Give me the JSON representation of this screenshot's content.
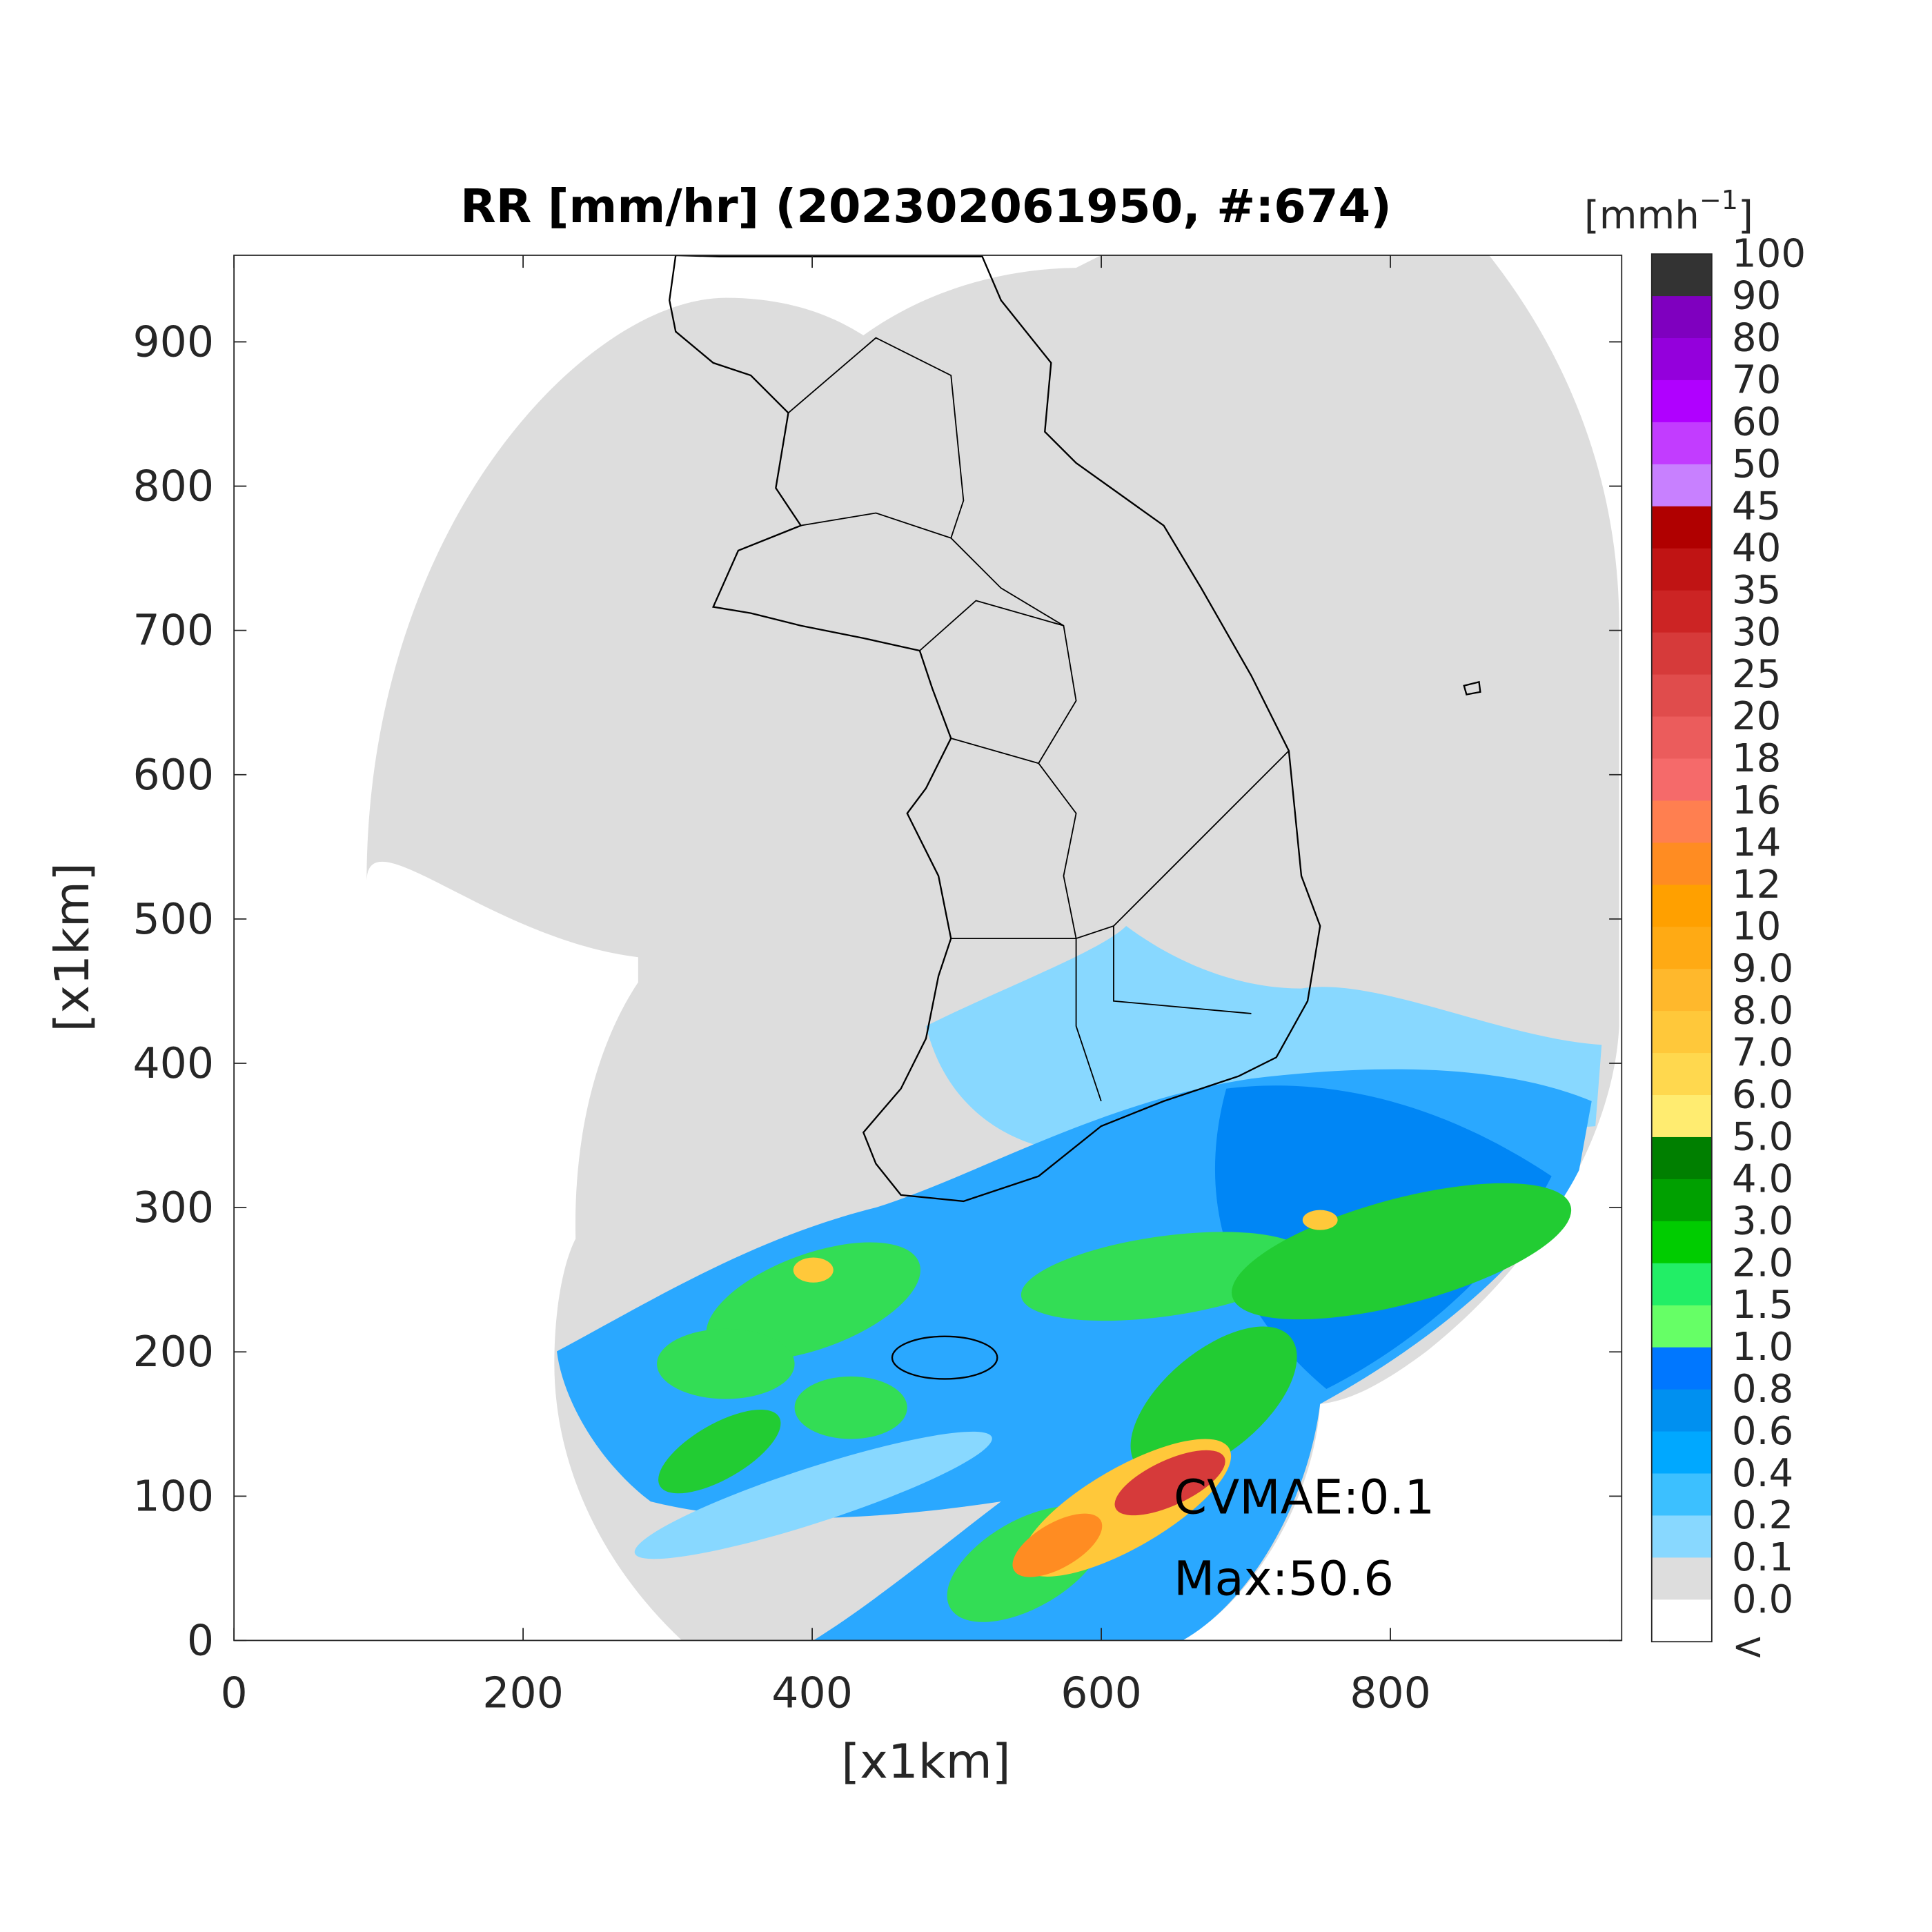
{
  "chart_data": {
    "type": "map",
    "title": "RR [mm/hr] (202302061950, #:674)",
    "xlabel": "[x1km]",
    "ylabel": "[x1km]",
    "xlim": [
      0,
      960
    ],
    "ylim": [
      0,
      960
    ],
    "xticks": [
      0,
      200,
      400,
      600,
      800
    ],
    "yticks": [
      0,
      100,
      200,
      300,
      400,
      500,
      600,
      700,
      800,
      900
    ],
    "annotations": [
      "CVMAE:0.1",
      "Max:50.6"
    ],
    "colorbar": {
      "unit": "[mmh",
      "unit_exponent": "−1",
      "unit_close": "]",
      "ticks": [
        100,
        90,
        80,
        70,
        60,
        50,
        45,
        40,
        35,
        30,
        25,
        20,
        18,
        16,
        14,
        12,
        10,
        {
          "value": 9,
          "label": "9.0"
        },
        {
          "value": 8,
          "label": "8.0"
        },
        {
          "value": 7,
          "label": "7.0"
        },
        {
          "value": 6,
          "label": "6.0"
        },
        {
          "value": 5,
          "label": "5.0"
        },
        {
          "value": 4,
          "label": "4.0"
        },
        {
          "value": 3,
          "label": "3.0"
        },
        {
          "value": 2,
          "label": "2.0"
        },
        1.5,
        {
          "value": 1,
          "label": "1.0"
        },
        0.8,
        0.6,
        0.4,
        0.2,
        0.1,
        {
          "value": 0,
          "label": "0.0"
        }
      ],
      "below_label": "<",
      "colors": [
        "#333333",
        "#7f00bf",
        "#9400dc",
        "#b000ff",
        "#c23cff",
        "#c880ff",
        "#b00000",
        "#c01414",
        "#cc2424",
        "#d63a3a",
        "#e04c4c",
        "#eb5c5c",
        "#f56a6a",
        "#ff7f50",
        "#ff8c22",
        "#ffa000",
        "#ffaa14",
        "#ffb82c",
        "#ffc83a",
        "#ffd84e",
        "#ffec70",
        "#007f00",
        "#00a000",
        "#00cc00",
        "#22ee66",
        "#66ff66",
        "#0077ff",
        "#0090f0",
        "#00a8ff",
        "#3cc0ff",
        "#88d8ff",
        "#dddddd",
        "#ffffff"
      ]
    }
  }
}
